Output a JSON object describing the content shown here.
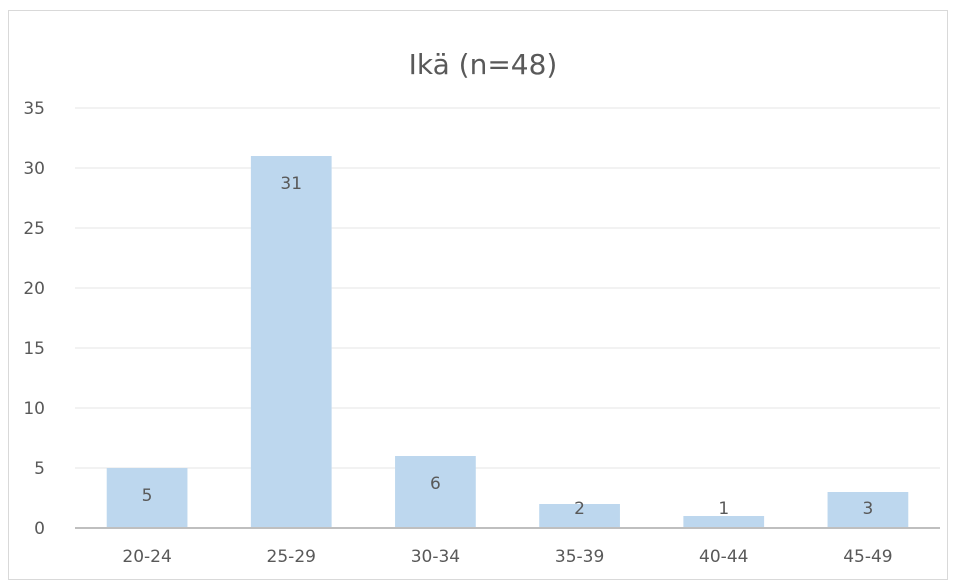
{
  "chart_data": {
    "type": "bar",
    "title": "Ikä (n=48)",
    "categories": [
      "20-24",
      "25-29",
      "30-34",
      "35-39",
      "40-44",
      "45-49"
    ],
    "values": [
      5,
      31,
      6,
      2,
      1,
      3
    ],
    "ylim": [
      0,
      35
    ],
    "yticks": [
      0,
      5,
      10,
      15,
      20,
      25,
      30,
      35
    ],
    "grid": true,
    "legend": "none",
    "data_labels": true,
    "colors": {
      "bar": "#bdd7ee",
      "grid": "#e6e6e6",
      "axis": "#bfbfbf",
      "text": "#595959",
      "frame": "#d9d9d9"
    }
  }
}
